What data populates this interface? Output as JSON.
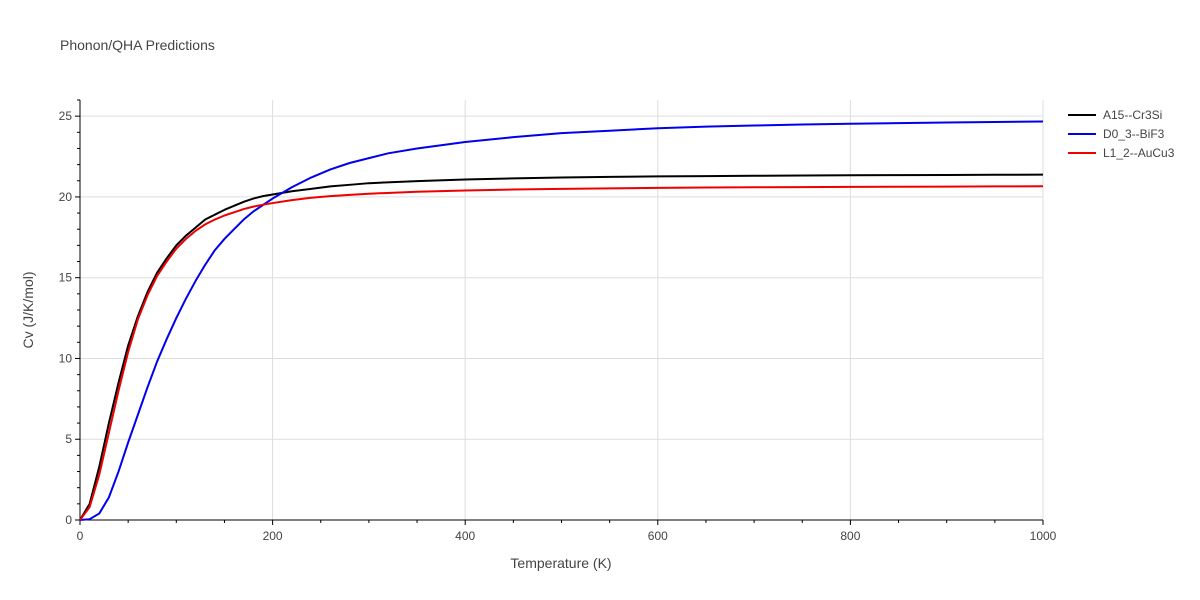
{
  "chart_data": {
    "type": "line",
    "title": "Phonon/QHA Predictions",
    "xlabel": "Temperature (K)",
    "ylabel": "Cv (J/K/mol)",
    "xlim": [
      0,
      1000
    ],
    "ylim": [
      0,
      26
    ],
    "xticks": [
      0,
      200,
      400,
      600,
      800,
      1000
    ],
    "yticks": [
      0,
      5,
      10,
      15,
      20,
      25
    ],
    "grid": true,
    "legend_position": "top-right",
    "series": [
      {
        "name": "A15--Cr3Si",
        "color": "#000000",
        "x": [
          0,
          10,
          20,
          30,
          40,
          50,
          60,
          70,
          80,
          90,
          100,
          110,
          120,
          130,
          140,
          150,
          160,
          170,
          180,
          190,
          200,
          220,
          240,
          260,
          280,
          300,
          350,
          400,
          450,
          500,
          550,
          600,
          650,
          700,
          750,
          800,
          850,
          900,
          950,
          1000
        ],
        "y": [
          0,
          1.0,
          3.3,
          6.0,
          8.5,
          10.8,
          12.6,
          14.1,
          15.3,
          16.2,
          17.0,
          17.6,
          18.1,
          18.6,
          18.9,
          19.2,
          19.45,
          19.7,
          19.9,
          20.05,
          20.15,
          20.35,
          20.5,
          20.65,
          20.75,
          20.85,
          20.98,
          21.08,
          21.15,
          21.2,
          21.24,
          21.27,
          21.29,
          21.31,
          21.33,
          21.34,
          21.35,
          21.36,
          21.37,
          21.38
        ]
      },
      {
        "name": "D0_3--BiF3",
        "color": "#0000ee",
        "x": [
          0,
          10,
          20,
          30,
          40,
          50,
          60,
          70,
          80,
          90,
          100,
          110,
          120,
          130,
          140,
          150,
          160,
          170,
          180,
          190,
          200,
          220,
          240,
          260,
          280,
          300,
          320,
          350,
          400,
          450,
          500,
          550,
          600,
          650,
          700,
          750,
          800,
          850,
          900,
          950,
          1000
        ],
        "y": [
          0,
          0.05,
          0.4,
          1.4,
          3.0,
          4.8,
          6.5,
          8.2,
          9.8,
          11.2,
          12.5,
          13.7,
          14.8,
          15.8,
          16.7,
          17.4,
          18.0,
          18.6,
          19.1,
          19.5,
          19.9,
          20.6,
          21.2,
          21.7,
          22.1,
          22.4,
          22.7,
          23.0,
          23.4,
          23.7,
          23.95,
          24.1,
          24.25,
          24.35,
          24.42,
          24.48,
          24.53,
          24.57,
          24.61,
          24.64,
          24.67
        ]
      },
      {
        "name": "L1_2--AuCu3",
        "color": "#ee0000",
        "x": [
          0,
          10,
          20,
          30,
          40,
          50,
          60,
          70,
          80,
          90,
          100,
          110,
          120,
          130,
          140,
          150,
          160,
          170,
          180,
          190,
          200,
          220,
          240,
          260,
          280,
          300,
          350,
          400,
          450,
          500,
          550,
          600,
          650,
          700,
          750,
          800,
          850,
          900,
          950,
          1000
        ],
        "y": [
          0,
          0.8,
          2.8,
          5.4,
          8.0,
          10.4,
          12.4,
          13.9,
          15.1,
          16.0,
          16.8,
          17.4,
          17.9,
          18.3,
          18.6,
          18.85,
          19.05,
          19.25,
          19.4,
          19.52,
          19.62,
          19.8,
          19.95,
          20.05,
          20.13,
          20.2,
          20.32,
          20.4,
          20.46,
          20.5,
          20.53,
          20.56,
          20.58,
          20.6,
          20.61,
          20.62,
          20.63,
          20.64,
          20.65,
          20.66
        ]
      }
    ]
  }
}
